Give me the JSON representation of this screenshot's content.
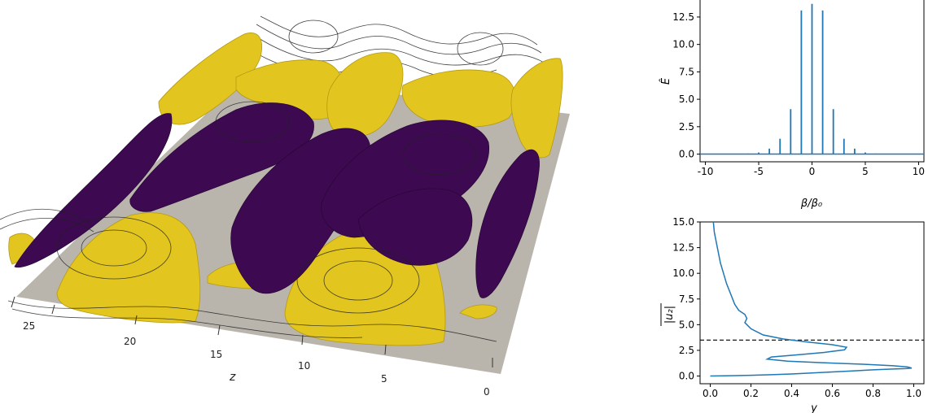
{
  "scene": {
    "axis_label": "z",
    "z_ticks": [
      "25",
      "20",
      "15",
      "10",
      "5",
      "0"
    ],
    "colors": {
      "plane": "#b9b5ac",
      "positive_surface": "#e3c51f",
      "negative_surface": "#3d0a52",
      "contour": "#1f1f1f"
    }
  },
  "chart_data": [
    {
      "type": "line",
      "name": "energy-spectrum",
      "xlabel": "β/β₀",
      "ylabel": "Ê",
      "xlim": [
        -10.5,
        10.5
      ],
      "ylim": [
        -0.7,
        14.2
      ],
      "xticks": [
        -10,
        -5,
        0,
        5,
        10
      ],
      "yticks": [
        0.0,
        2.5,
        5.0,
        7.5,
        10.0,
        12.5
      ],
      "ytick_labels": [
        "0.0",
        "2.5",
        "5.0",
        "7.5",
        "10.0",
        "12.5"
      ],
      "color": "#1f77b4",
      "spikes": [
        {
          "x": -6,
          "y": 0.05
        },
        {
          "x": -5,
          "y": 0.15
        },
        {
          "x": -4,
          "y": 0.5
        },
        {
          "x": -3,
          "y": 1.4
        },
        {
          "x": -2,
          "y": 4.1
        },
        {
          "x": -1,
          "y": 13.1
        },
        {
          "x": 0,
          "y": 13.7
        },
        {
          "x": 1,
          "y": 13.1
        },
        {
          "x": 2,
          "y": 4.1
        },
        {
          "x": 3,
          "y": 1.4
        },
        {
          "x": 4,
          "y": 0.5
        },
        {
          "x": 5,
          "y": 0.15
        },
        {
          "x": 6,
          "y": 0.05
        }
      ]
    },
    {
      "type": "line",
      "name": "velocity-profile",
      "xlabel": "y",
      "ylabel": "|u₂|",
      "ylabel_overline": true,
      "xlim": [
        -0.05,
        1.05
      ],
      "ylim": [
        -0.75,
        15.0
      ],
      "xticks": [
        0.0,
        0.2,
        0.4,
        0.6,
        0.8,
        1.0
      ],
      "xtick_labels": [
        "0.0",
        "0.2",
        "0.4",
        "0.6",
        "0.8",
        "1.0"
      ],
      "yticks": [
        0.0,
        2.5,
        5.0,
        7.5,
        10.0,
        12.5,
        15.0
      ],
      "ytick_labels": [
        "0.0",
        "2.5",
        "5.0",
        "7.5",
        "10.0",
        "12.5",
        "15.0"
      ],
      "color": "#1f77b4",
      "hline": 3.5,
      "points": [
        [
          0.0,
          0.0
        ],
        [
          0.1,
          0.03
        ],
        [
          0.2,
          0.07
        ],
        [
          0.3,
          0.13
        ],
        [
          0.4,
          0.2
        ],
        [
          0.5,
          0.3
        ],
        [
          0.6,
          0.4
        ],
        [
          0.7,
          0.5
        ],
        [
          0.8,
          0.6
        ],
        [
          0.9,
          0.68
        ],
        [
          0.96,
          0.72
        ],
        [
          0.99,
          0.78
        ],
        [
          0.97,
          0.88
        ],
        [
          0.9,
          1.0
        ],
        [
          0.75,
          1.15
        ],
        [
          0.55,
          1.3
        ],
        [
          0.38,
          1.45
        ],
        [
          0.28,
          1.65
        ],
        [
          0.3,
          1.85
        ],
        [
          0.42,
          2.05
        ],
        [
          0.56,
          2.3
        ],
        [
          0.66,
          2.55
        ],
        [
          0.67,
          2.8
        ],
        [
          0.6,
          3.05
        ],
        [
          0.48,
          3.3
        ],
        [
          0.36,
          3.6
        ],
        [
          0.26,
          4.0
        ],
        [
          0.2,
          4.6
        ],
        [
          0.17,
          5.2
        ],
        [
          0.18,
          5.6
        ],
        [
          0.17,
          6.0
        ],
        [
          0.14,
          6.4
        ],
        [
          0.12,
          7.0
        ],
        [
          0.1,
          8.0
        ],
        [
          0.08,
          9.0
        ],
        [
          0.065,
          10.0
        ],
        [
          0.05,
          11.0
        ],
        [
          0.04,
          12.0
        ],
        [
          0.03,
          13.0
        ],
        [
          0.02,
          14.0
        ],
        [
          0.015,
          15.0
        ]
      ]
    }
  ]
}
